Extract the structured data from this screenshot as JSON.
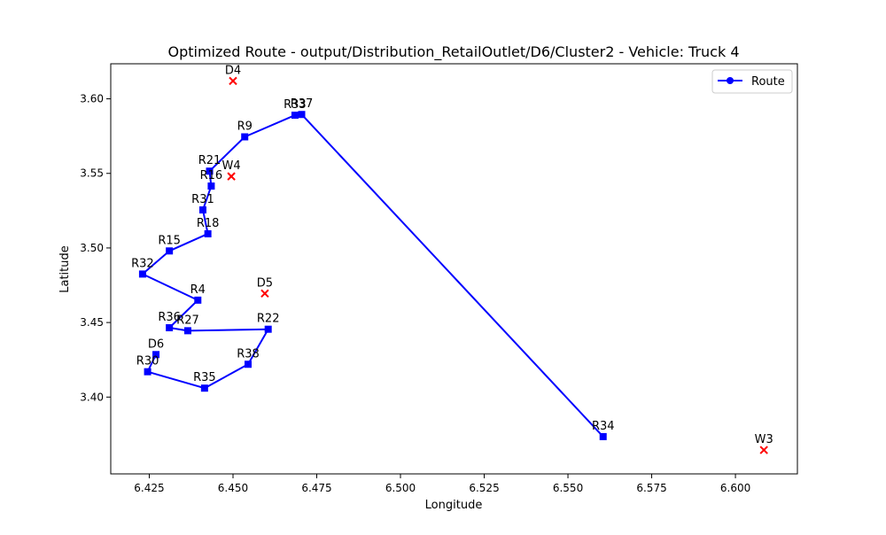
{
  "chart_data": {
    "type": "line",
    "title": "Optimized Route - output/Distribution_RetailOutlet/D6/Cluster2 - Vehicle: Truck 4",
    "xlabel": "Longitude",
    "ylabel": "Latitude",
    "xlim": [
      6.4135,
      6.6185
    ],
    "ylim": [
      3.3485,
      3.6235
    ],
    "xticks": [
      6.425,
      6.45,
      6.475,
      6.5,
      6.525,
      6.55,
      6.575,
      6.6
    ],
    "xtick_labels": [
      "6.425",
      "6.450",
      "6.475",
      "6.500",
      "6.525",
      "6.550",
      "6.575",
      "6.600"
    ],
    "yticks": [
      3.4,
      3.45,
      3.5,
      3.55,
      3.6
    ],
    "ytick_labels": [
      "3.40",
      "3.45",
      "3.50",
      "3.55",
      "3.60"
    ],
    "grid": false,
    "legend": {
      "placement": "top-right",
      "label": "Route"
    },
    "route_color": "#0000ff",
    "marker_color": "#ff0000",
    "route": [
      {
        "label": "D6",
        "x": 6.427,
        "y": 3.4285
      },
      {
        "label": "R30",
        "x": 6.4245,
        "y": 3.417
      },
      {
        "label": "R35",
        "x": 6.4415,
        "y": 3.406
      },
      {
        "label": "R38",
        "x": 6.4545,
        "y": 3.422
      },
      {
        "label": "R22",
        "x": 6.4605,
        "y": 3.4455
      },
      {
        "label": "R27",
        "x": 6.4365,
        "y": 3.4445
      },
      {
        "label": "R36",
        "x": 6.431,
        "y": 3.4465
      },
      {
        "label": "R4",
        "x": 6.4395,
        "y": 3.465
      },
      {
        "label": "R32",
        "x": 6.423,
        "y": 3.4825
      },
      {
        "label": "R15",
        "x": 6.431,
        "y": 3.498
      },
      {
        "label": "R18",
        "x": 6.4425,
        "y": 3.5095
      },
      {
        "label": "R31",
        "x": 6.441,
        "y": 3.5255
      },
      {
        "label": "R16",
        "x": 6.4435,
        "y": 3.5415
      },
      {
        "label": "R21",
        "x": 6.443,
        "y": 3.5515
      },
      {
        "label": "R9",
        "x": 6.4535,
        "y": 3.5745
      },
      {
        "label": "R33",
        "x": 6.4685,
        "y": 3.589
      },
      {
        "label": "R37",
        "x": 6.4705,
        "y": 3.5895
      },
      {
        "label": "R34",
        "x": 6.5605,
        "y": 3.3735
      }
    ],
    "markers": [
      {
        "label": "D4",
        "x": 6.45,
        "y": 3.612
      },
      {
        "label": "W4",
        "x": 6.4495,
        "y": 3.548
      },
      {
        "label": "D5",
        "x": 6.4595,
        "y": 3.4695
      },
      {
        "label": "W3",
        "x": 6.6085,
        "y": 3.3645
      }
    ]
  }
}
